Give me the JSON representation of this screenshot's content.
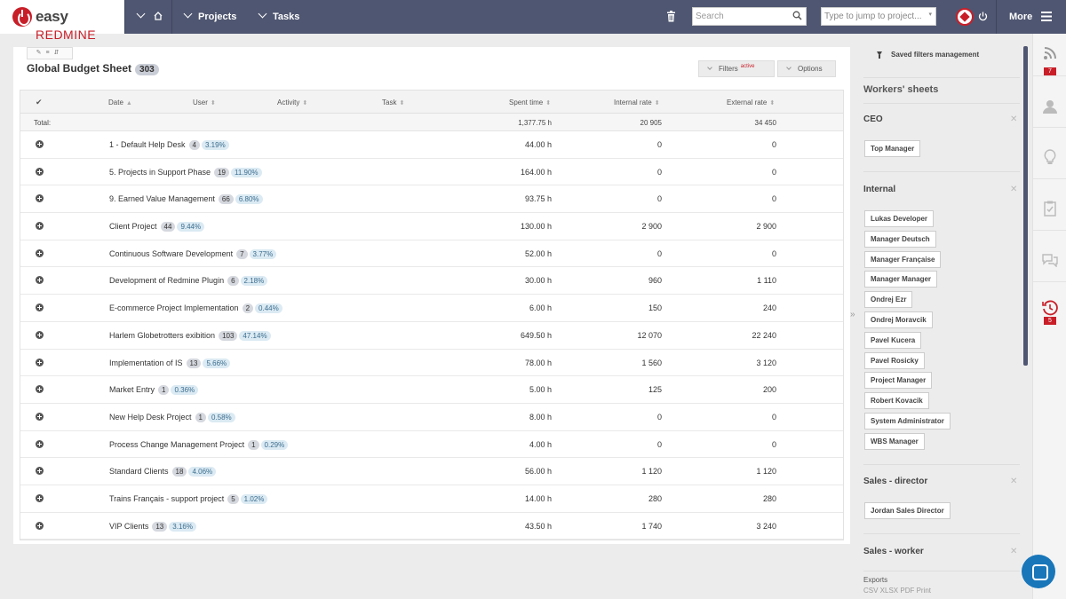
{
  "topbar": {
    "logo_main": "easy",
    "logo_accent": "REDMINE",
    "projects_label": "Projects",
    "tasks_label": "Tasks",
    "search_placeholder": "Search",
    "jump_placeholder": "Type to jump to project...",
    "more_label": "More"
  },
  "page": {
    "title": "Global Budget Sheet",
    "count": "303",
    "filters_label": "Filters",
    "filters_state": "active",
    "options_label": "Options"
  },
  "table": {
    "columns": [
      "Date",
      "User",
      "Activity",
      "Task",
      "Spent time",
      "Internal rate",
      "External rate"
    ],
    "total_label": "Total:",
    "total_spent": "1,377.75 h",
    "total_internal": "20 905",
    "total_external": "34 450",
    "rows": [
      {
        "name": "1 - Default Help Desk",
        "n": "4",
        "pct": "3.19%",
        "spent": "44.00 h",
        "internal": "0",
        "external": "0"
      },
      {
        "name": "5. Projects in Support Phase",
        "n": "19",
        "pct": "11.90%",
        "spent": "164.00 h",
        "internal": "0",
        "external": "0"
      },
      {
        "name": "9. Earned Value Management",
        "n": "66",
        "pct": "6.80%",
        "spent": "93.75 h",
        "internal": "0",
        "external": "0"
      },
      {
        "name": "Client Project",
        "n": "44",
        "pct": "9.44%",
        "spent": "130.00 h",
        "internal": "2 900",
        "external": "2 900"
      },
      {
        "name": "Continuous Software Development",
        "n": "7",
        "pct": "3.77%",
        "spent": "52.00 h",
        "internal": "0",
        "external": "0"
      },
      {
        "name": "Development of Redmine Plugin",
        "n": "6",
        "pct": "2.18%",
        "spent": "30.00 h",
        "internal": "960",
        "external": "1 110"
      },
      {
        "name": "E-commerce Project Implementation",
        "n": "2",
        "pct": "0.44%",
        "spent": "6.00 h",
        "internal": "150",
        "external": "240"
      },
      {
        "name": "Harlem Globetrotters exibition",
        "n": "103",
        "pct": "47.14%",
        "spent": "649.50 h",
        "internal": "12 070",
        "external": "22 240"
      },
      {
        "name": "Implementation of IS",
        "n": "13",
        "pct": "5.66%",
        "spent": "78.00 h",
        "internal": "1 560",
        "external": "3 120"
      },
      {
        "name": "Market Entry",
        "n": "1",
        "pct": "0.36%",
        "spent": "5.00 h",
        "internal": "125",
        "external": "200"
      },
      {
        "name": "New Help Desk Project",
        "n": "1",
        "pct": "0.58%",
        "spent": "8.00 h",
        "internal": "0",
        "external": "0"
      },
      {
        "name": "Process Change Management Project",
        "n": "1",
        "pct": "0.29%",
        "spent": "4.00 h",
        "internal": "0",
        "external": "0"
      },
      {
        "name": "Standard Clients",
        "n": "18",
        "pct": "4.06%",
        "spent": "56.00 h",
        "internal": "1 120",
        "external": "1 120"
      },
      {
        "name": "Trains Français - support project",
        "n": "5",
        "pct": "1.02%",
        "spent": "14.00 h",
        "internal": "280",
        "external": "280"
      },
      {
        "name": "VIP Clients",
        "n": "13",
        "pct": "3.16%",
        "spent": "43.50 h",
        "internal": "1 740",
        "external": "3 240"
      }
    ]
  },
  "sidebar": {
    "saved_filters": "Saved filters management",
    "workers_title": "Workers' sheets",
    "groups": [
      {
        "name": "CEO",
        "members": [
          "Top Manager"
        ]
      },
      {
        "name": "Internal",
        "members": [
          "Lukas Developer",
          "Manager Deutsch",
          "Manager Française",
          "Manager Manager",
          "Ondrej Ezr",
          "Ondrej Moravcik",
          "Pavel Kucera",
          "Pavel Rosicky",
          "Project Manager",
          "Robert Kovacik",
          "System Administrator",
          "WBS Manager"
        ]
      },
      {
        "name": "Sales - director",
        "members": [
          "Jordan Sales Director"
        ]
      },
      {
        "name": "Sales - worker",
        "members": []
      }
    ],
    "exports_label": "Exports",
    "export_links": "CSV  XLSX  PDF  Print"
  },
  "iconbar": {
    "activity_count": "7",
    "timer_count": "5"
  }
}
